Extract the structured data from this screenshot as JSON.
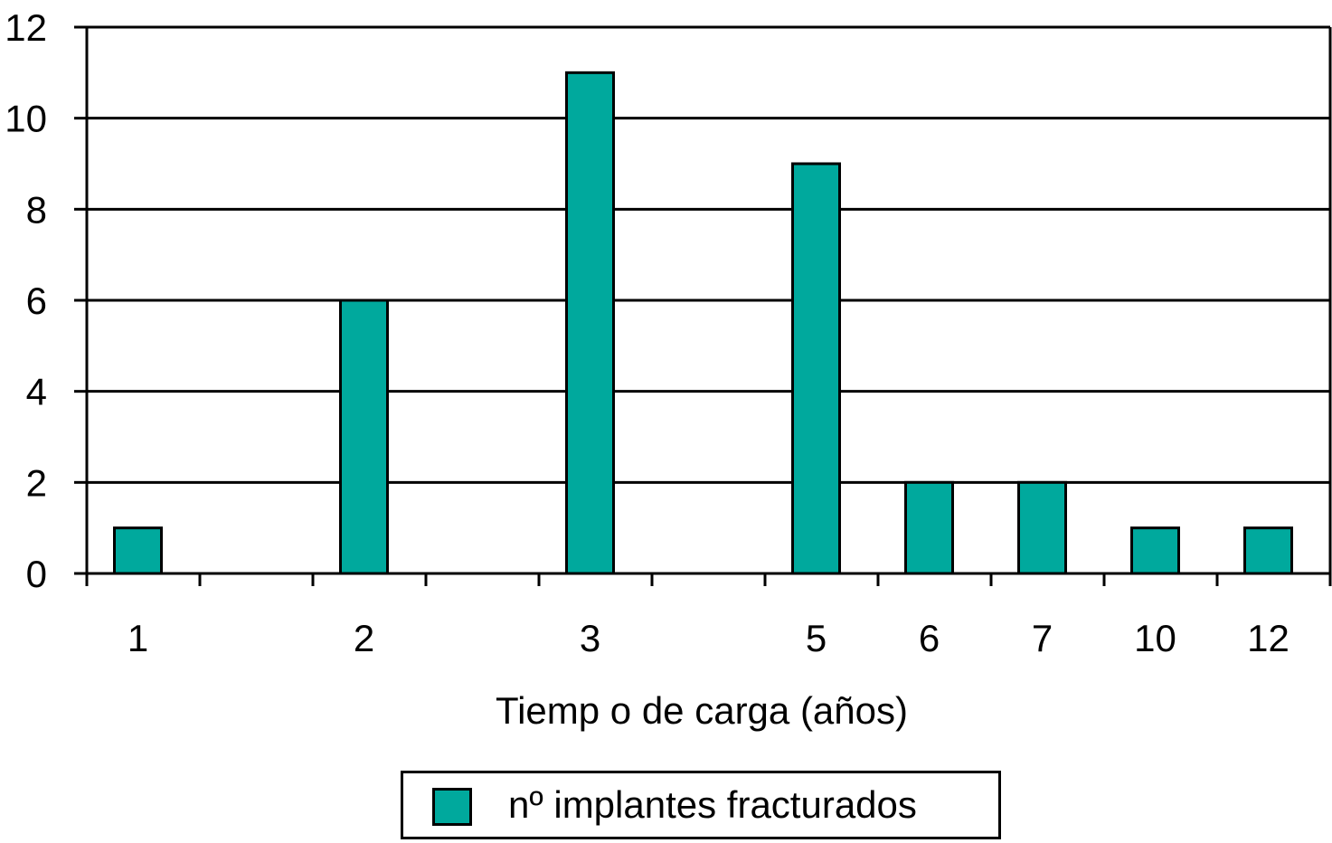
{
  "chart_data": {
    "type": "bar",
    "categories": [
      "1",
      "2",
      "3",
      "5",
      "6",
      "7",
      "10",
      "12"
    ],
    "series": [
      {
        "name": "nº implantes fracturados",
        "values": [
          1,
          6,
          11,
          9,
          2,
          2,
          1,
          1
        ]
      }
    ],
    "xlabel": "Tiemp o de carga (años)",
    "ylabel": "",
    "ylim": [
      0,
      12
    ],
    "yticks": [
      0,
      2,
      4,
      6,
      8,
      10,
      12
    ],
    "grid": true,
    "legend_position": "bottom",
    "bar_color": "#00a99d"
  }
}
